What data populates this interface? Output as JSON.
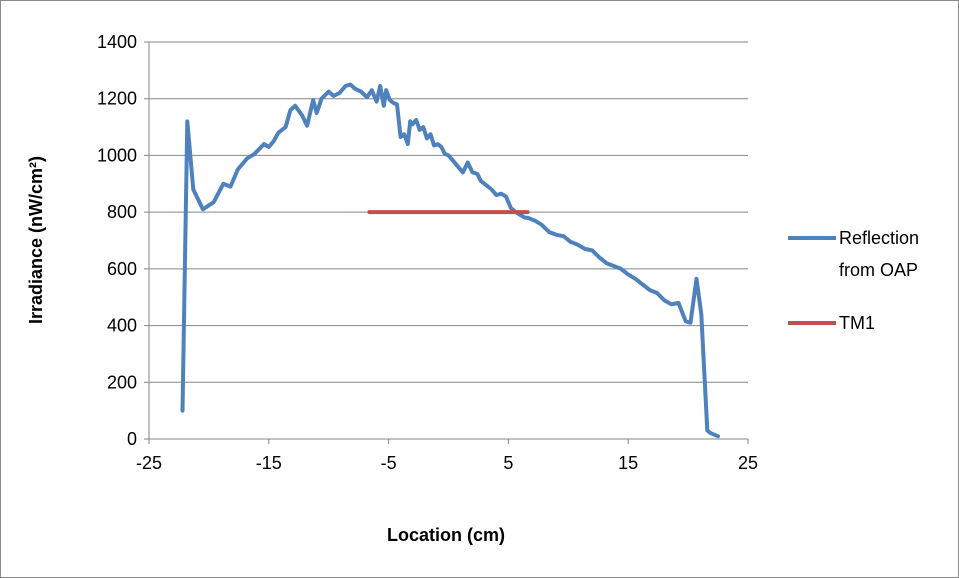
{
  "chart_data": {
    "type": "line",
    "title": "",
    "xlabel": "Location (cm)",
    "ylabel": "Irradiance (nW/cm²)",
    "xlim": [
      -25,
      25
    ],
    "ylim": [
      0,
      1400
    ],
    "xticks": [
      "-25",
      "-15",
      "-5",
      "5",
      "15",
      "25"
    ],
    "yticks": [
      "0",
      "200",
      "400",
      "600",
      "800",
      "1000",
      "1200",
      "1400"
    ],
    "grid": "horizontal",
    "legend_position": "right",
    "series": [
      {
        "name": "Reflection from OAP",
        "legend_lines": [
          "Reflection",
          "from OAP"
        ],
        "color": "#4f81bd",
        "x": [
          -22.2,
          -21.8,
          -21.3,
          -20.5,
          -19.6,
          -18.8,
          -18.2,
          -17.6,
          -16.8,
          -16.2,
          -15.4,
          -15.0,
          -14.6,
          -14.2,
          -13.6,
          -13.2,
          -12.8,
          -12.2,
          -11.8,
          -11.3,
          -11.0,
          -10.6,
          -10.0,
          -9.6,
          -9.1,
          -8.6,
          -8.2,
          -7.8,
          -7.3,
          -6.8,
          -6.4,
          -6.0,
          -5.7,
          -5.4,
          -5.2,
          -4.9,
          -4.6,
          -4.3,
          -4.0,
          -3.7,
          -3.4,
          -3.2,
          -3.0,
          -2.7,
          -2.4,
          -2.1,
          -1.8,
          -1.5,
          -1.2,
          -0.9,
          -0.6,
          -0.3,
          0.0,
          0.4,
          0.8,
          1.2,
          1.6,
          2.0,
          2.4,
          2.7,
          3.0,
          3.3,
          3.6,
          4.0,
          4.4,
          4.8,
          5.2,
          5.6,
          6.0,
          6.4,
          6.6,
          7.2,
          7.8,
          8.4,
          9.0,
          9.6,
          10.2,
          10.8,
          11.4,
          12.0,
          12.6,
          13.2,
          13.8,
          14.4,
          15.0,
          15.6,
          16.2,
          16.8,
          17.4,
          18.0,
          18.6,
          19.2,
          19.8,
          20.2,
          20.7,
          21.1,
          21.6,
          21.9,
          22.5
        ],
        "y": [
          100,
          1120,
          880,
          810,
          835,
          900,
          890,
          950,
          990,
          1005,
          1040,
          1030,
          1050,
          1080,
          1100,
          1160,
          1175,
          1140,
          1105,
          1195,
          1150,
          1200,
          1225,
          1210,
          1220,
          1245,
          1250,
          1235,
          1225,
          1205,
          1230,
          1190,
          1245,
          1175,
          1230,
          1195,
          1185,
          1180,
          1065,
          1075,
          1040,
          1120,
          1110,
          1125,
          1090,
          1100,
          1060,
          1075,
          1035,
          1040,
          1030,
          1005,
          1000,
          980,
          960,
          940,
          975,
          940,
          935,
          910,
          900,
          890,
          880,
          860,
          865,
          855,
          815,
          800,
          790,
          780,
          780,
          770,
          755,
          730,
          720,
          715,
          695,
          685,
          670,
          665,
          640,
          620,
          610,
          600,
          580,
          565,
          545,
          525,
          515,
          490,
          475,
          480,
          415,
          410,
          565,
          440,
          30,
          20,
          10
        ]
      },
      {
        "name": "TM1",
        "legend_lines": [
          "TM1"
        ],
        "color": "#c0504d",
        "x": [
          -6.6,
          6.6
        ],
        "y": [
          800,
          800
        ]
      }
    ]
  }
}
